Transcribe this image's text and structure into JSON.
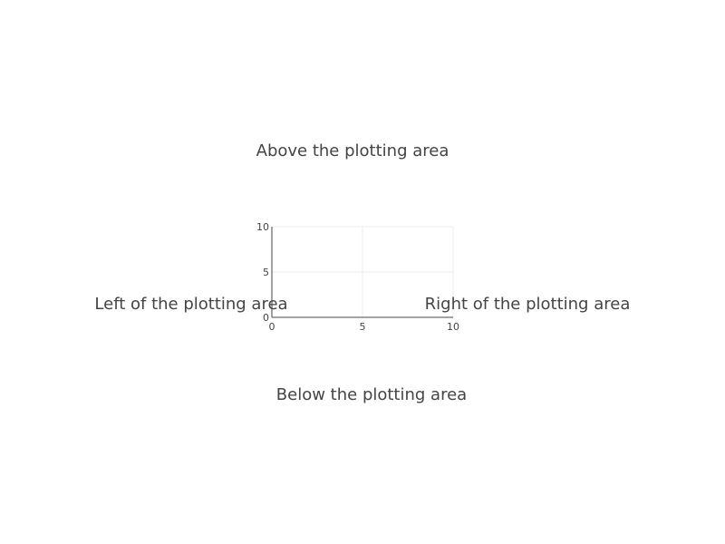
{
  "chart_data": {
    "type": "scatter",
    "title": "",
    "xlabel": "",
    "ylabel": "",
    "xlim": [
      0,
      10
    ],
    "ylim": [
      0,
      10
    ],
    "x_ticks": [
      "0",
      "5",
      "10"
    ],
    "y_ticks": [
      "0",
      "5",
      "10"
    ],
    "grid": true,
    "series": [],
    "annotations": [
      {
        "id": "above",
        "text": "Above the plotting area",
        "placement": "above"
      },
      {
        "id": "left",
        "text": "Left of the plotting area",
        "placement": "left"
      },
      {
        "id": "right",
        "text": "Right of the plotting area",
        "placement": "right"
      },
      {
        "id": "below",
        "text": "Below the plotting area",
        "placement": "below"
      }
    ],
    "colors": {
      "axis": "#444444",
      "grid": "#eeeeee",
      "text": "#444444"
    }
  }
}
